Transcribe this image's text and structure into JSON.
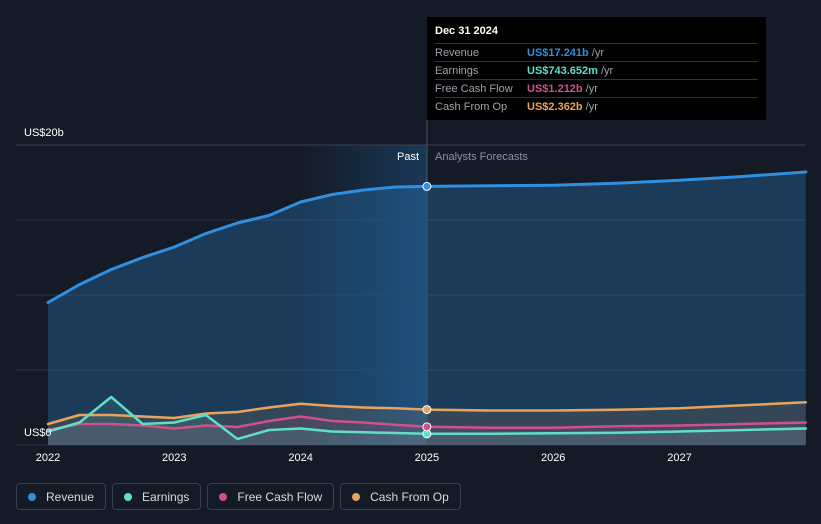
{
  "chart_data": {
    "type": "line",
    "title": "",
    "ylabel_top": "US$20b",
    "ylabel_bottom": "US$0",
    "ylim": [
      0,
      20
    ],
    "y_unit": "US$ billions",
    "x_ticks": [
      "2022",
      "2023",
      "2024",
      "2025",
      "2026",
      "2027"
    ],
    "divider_x": 2025.0,
    "past_label": "Past",
    "forecast_label": "Analysts Forecasts",
    "grid": true,
    "series": [
      {
        "name": "Revenue",
        "color": "#2f8fe0",
        "points": [
          [
            2022.0,
            9.5
          ],
          [
            2022.25,
            10.7
          ],
          [
            2022.5,
            11.7
          ],
          [
            2022.75,
            12.5
          ],
          [
            2023.0,
            13.2
          ],
          [
            2023.25,
            14.1
          ],
          [
            2023.5,
            14.8
          ],
          [
            2023.75,
            15.3
          ],
          [
            2024.0,
            16.2
          ],
          [
            2024.25,
            16.7
          ],
          [
            2024.5,
            17.0
          ],
          [
            2024.75,
            17.2
          ],
          [
            2025.0,
            17.241
          ],
          [
            2025.5,
            17.28
          ],
          [
            2026.0,
            17.32
          ],
          [
            2026.5,
            17.45
          ],
          [
            2027.0,
            17.65
          ],
          [
            2027.5,
            17.9
          ],
          [
            2028.0,
            18.2
          ]
        ]
      },
      {
        "name": "Earnings",
        "color": "#5ee0c8",
        "points": [
          [
            2022.0,
            0.9
          ],
          [
            2022.25,
            1.5
          ],
          [
            2022.5,
            3.2
          ],
          [
            2022.75,
            1.4
          ],
          [
            2023.0,
            1.5
          ],
          [
            2023.25,
            2.0
          ],
          [
            2023.5,
            0.4
          ],
          [
            2023.75,
            1.0
          ],
          [
            2024.0,
            1.1
          ],
          [
            2024.25,
            0.9
          ],
          [
            2024.5,
            0.85
          ],
          [
            2024.75,
            0.8
          ],
          [
            2025.0,
            0.744
          ],
          [
            2025.5,
            0.75
          ],
          [
            2026.0,
            0.78
          ],
          [
            2026.5,
            0.82
          ],
          [
            2027.0,
            0.9
          ],
          [
            2027.5,
            1.0
          ],
          [
            2028.0,
            1.1
          ]
        ]
      },
      {
        "name": "Free Cash Flow",
        "color": "#d0508a",
        "points": [
          [
            2022.0,
            1.0
          ],
          [
            2022.25,
            1.4
          ],
          [
            2022.5,
            1.4
          ],
          [
            2022.75,
            1.3
          ],
          [
            2023.0,
            1.1
          ],
          [
            2023.25,
            1.3
          ],
          [
            2023.5,
            1.2
          ],
          [
            2023.75,
            1.6
          ],
          [
            2024.0,
            1.9
          ],
          [
            2024.25,
            1.6
          ],
          [
            2024.5,
            1.5
          ],
          [
            2024.75,
            1.35
          ],
          [
            2025.0,
            1.212
          ],
          [
            2025.5,
            1.15
          ],
          [
            2026.0,
            1.15
          ],
          [
            2026.5,
            1.25
          ],
          [
            2027.0,
            1.3
          ],
          [
            2027.5,
            1.4
          ],
          [
            2028.0,
            1.5
          ]
        ]
      },
      {
        "name": "Cash From Op",
        "color": "#e8a45c",
        "points": [
          [
            2022.0,
            1.4
          ],
          [
            2022.25,
            2.0
          ],
          [
            2022.5,
            2.0
          ],
          [
            2022.75,
            1.9
          ],
          [
            2023.0,
            1.8
          ],
          [
            2023.25,
            2.1
          ],
          [
            2023.5,
            2.2
          ],
          [
            2023.75,
            2.5
          ],
          [
            2024.0,
            2.75
          ],
          [
            2024.25,
            2.6
          ],
          [
            2024.5,
            2.5
          ],
          [
            2024.75,
            2.45
          ],
          [
            2025.0,
            2.362
          ],
          [
            2025.5,
            2.3
          ],
          [
            2026.0,
            2.3
          ],
          [
            2026.5,
            2.35
          ],
          [
            2027.0,
            2.45
          ],
          [
            2027.5,
            2.65
          ],
          [
            2028.0,
            2.85
          ]
        ]
      }
    ]
  },
  "tooltip": {
    "date": "Dec 31 2024",
    "rows": [
      {
        "name": "Revenue",
        "value": "US$17.241b",
        "unit": "/yr",
        "color": "#2f8fe0"
      },
      {
        "name": "Earnings",
        "value": "US$743.652m",
        "unit": "/yr",
        "color": "#5ee0c8"
      },
      {
        "name": "Free Cash Flow",
        "value": "US$1.212b",
        "unit": "/yr",
        "color": "#d0508a"
      },
      {
        "name": "Cash From Op",
        "value": "US$2.362b",
        "unit": "/yr",
        "color": "#e8a45c"
      }
    ]
  },
  "legend": [
    {
      "label": "Revenue",
      "color": "#2f8fe0"
    },
    {
      "label": "Earnings",
      "color": "#5ee0c8"
    },
    {
      "label": "Free Cash Flow",
      "color": "#d0508a"
    },
    {
      "label": "Cash From Op",
      "color": "#e8a45c"
    }
  ]
}
